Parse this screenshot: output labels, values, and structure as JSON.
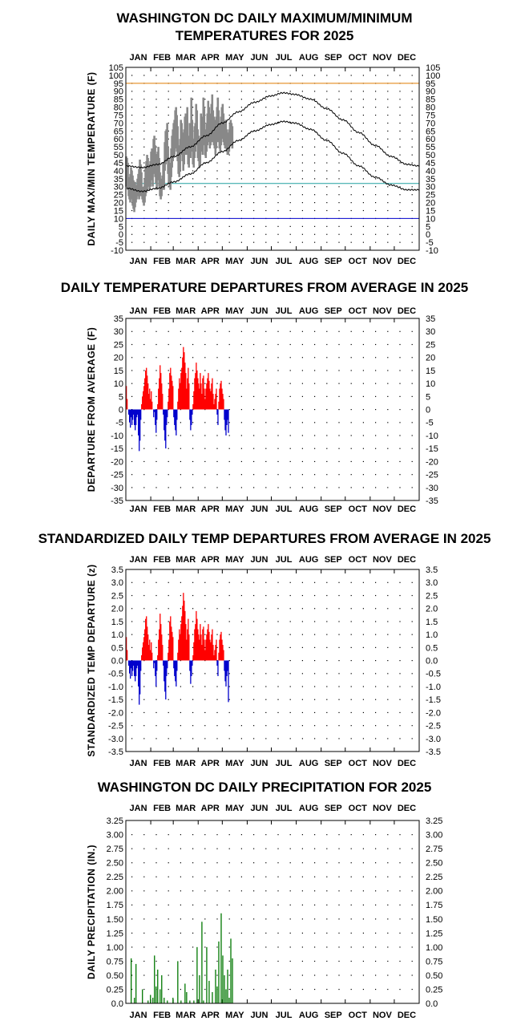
{
  "months": [
    "JAN",
    "FEB",
    "MAR",
    "APR",
    "MAY",
    "JUN",
    "JUL",
    "AUG",
    "SEP",
    "OCT",
    "NOV",
    "DEC"
  ],
  "chart_data": [
    {
      "id": "maxmin",
      "type": "line",
      "title": [
        "WASHINGTON DC DAILY MAXIMUM/MINIMUM",
        "TEMPERATURES FOR 2025"
      ],
      "ylabel": "DAILY MAX/MIN TEMPERATURE (F)",
      "ylim": [
        -10,
        105
      ],
      "yticks": [
        "-10",
        "-5",
        "0",
        "5",
        "10",
        "15",
        "20",
        "25",
        "30",
        "35",
        "40",
        "45",
        "50",
        "55",
        "60",
        "65",
        "70",
        "75",
        "80",
        "85",
        "90",
        "95",
        "100",
        "105"
      ],
      "reference_lines": [
        {
          "value": 95,
          "color": "#e07b00"
        },
        {
          "value": 32,
          "color": "#20a0a0"
        },
        {
          "value": 10,
          "color": "#0000cc"
        }
      ],
      "normal_high": {
        "day": [
          1,
          20,
          40,
          60,
          80,
          100,
          120,
          140,
          160,
          180,
          196,
          210,
          230,
          250,
          270,
          290,
          310,
          330,
          350,
          365
        ],
        "temp": [
          43,
          42,
          44,
          49,
          55,
          62,
          70,
          77,
          83,
          87,
          89,
          88,
          85,
          79,
          72,
          64,
          56,
          49,
          44,
          43
        ]
      },
      "normal_low": {
        "day": [
          1,
          20,
          40,
          60,
          80,
          100,
          120,
          140,
          160,
          180,
          196,
          210,
          230,
          250,
          270,
          290,
          310,
          330,
          350,
          365
        ],
        "temp": [
          29,
          27,
          29,
          33,
          38,
          45,
          52,
          59,
          65,
          69,
          71,
          70,
          66,
          59,
          51,
          43,
          36,
          31,
          28,
          28
        ]
      },
      "observed_high": [
        49,
        48,
        45,
        36,
        33,
        38,
        42,
        40,
        37,
        34,
        30,
        33,
        31,
        29,
        35,
        38,
        41,
        47,
        44,
        39,
        28,
        30,
        27,
        35,
        42,
        46,
        50,
        48,
        44,
        40,
        46,
        52,
        54,
        48,
        60,
        62,
        56,
        50,
        44,
        52,
        55,
        48,
        39,
        35,
        32,
        37,
        45,
        42,
        58,
        65,
        66,
        70,
        55,
        48,
        45,
        42,
        54,
        62,
        66,
        70,
        72,
        78,
        80,
        75,
        68,
        56,
        52,
        60,
        72,
        70,
        64,
        58,
        66,
        74,
        76,
        72,
        80,
        62,
        58,
        70,
        66,
        86,
        72,
        58,
        60,
        68,
        70,
        82,
        78,
        66,
        62,
        52,
        60,
        76,
        74,
        68,
        86,
        80,
        64,
        66,
        70,
        76,
        84,
        80,
        72,
        76,
        82,
        88,
        78,
        74,
        72,
        66,
        74,
        80,
        86,
        78,
        70,
        66,
        74,
        80,
        82,
        76,
        70,
        68,
        72,
        66,
        64,
        62,
        66,
        70,
        72,
        70,
        68
      ],
      "observed_low": [
        30,
        30,
        28,
        24,
        22,
        20,
        24,
        22,
        18,
        16,
        14,
        17,
        20,
        22,
        24,
        26,
        22,
        27,
        24,
        25,
        22,
        20,
        18,
        20,
        24,
        26,
        28,
        30,
        30,
        28,
        30,
        34,
        36,
        30,
        38,
        40,
        36,
        32,
        28,
        34,
        36,
        30,
        24,
        22,
        24,
        28,
        32,
        28,
        40,
        44,
        46,
        50,
        38,
        32,
        30,
        28,
        36,
        42,
        46,
        48,
        50,
        54,
        56,
        52,
        46,
        38,
        36,
        40,
        50,
        52,
        46,
        40,
        44,
        50,
        52,
        50,
        54,
        44,
        42,
        48,
        48,
        56,
        52,
        44,
        42,
        48,
        52,
        58,
        56,
        48,
        46,
        42,
        44,
        52,
        54,
        50,
        56,
        58,
        50,
        48,
        52,
        56,
        60,
        58,
        54,
        56,
        58,
        62,
        58,
        56,
        54,
        50,
        54,
        58,
        60,
        58,
        54,
        52,
        56,
        60,
        62,
        58,
        56,
        54,
        56,
        52,
        50,
        50,
        52,
        56,
        58,
        56,
        54
      ]
    },
    {
      "id": "departures",
      "type": "bar",
      "title": [
        "DAILY TEMPERATURE DEPARTURES FROM AVERAGE IN 2025"
      ],
      "ylabel": "DEPARTURE FROM AVERAGE (F)",
      "ylim": [
        -35,
        35
      ],
      "yticks": [
        "-35",
        "-30",
        "-25",
        "-20",
        "-15",
        "-10",
        "-5",
        "0",
        "5",
        "10",
        "15",
        "20",
        "25",
        "30",
        "35"
      ],
      "positive_color": "#ff0000",
      "negative_color": "#0000cc",
      "values": [
        9,
        4,
        0,
        -2,
        -5,
        -7,
        -3,
        -6,
        -4,
        -2,
        -6,
        -8,
        -6,
        -3,
        -2,
        -10,
        -16,
        -12,
        -4,
        2,
        5,
        7,
        9,
        12,
        15,
        16,
        13,
        10,
        6,
        8,
        4,
        7,
        3,
        0,
        -3,
        -1,
        -6,
        -9,
        -4,
        2,
        8,
        12,
        17,
        14,
        10,
        6,
        -2,
        -8,
        -12,
        -15,
        -6,
        -3,
        3,
        8,
        14,
        16,
        13,
        11,
        9,
        -3,
        -6,
        -8,
        -10,
        -4,
        3,
        8,
        12,
        10,
        14,
        16,
        20,
        24,
        22,
        18,
        14,
        8,
        12,
        16,
        10,
        -4,
        -8,
        -6,
        -2,
        2,
        7,
        12,
        14,
        18,
        15,
        12,
        10,
        8,
        14,
        10,
        6,
        12,
        13,
        8,
        4,
        8,
        10,
        12,
        14,
        11,
        8,
        7,
        10,
        12,
        6,
        2,
        4,
        6,
        8,
        -2,
        -6,
        3,
        8,
        10,
        11,
        8,
        6,
        4,
        -4,
        -8,
        -10,
        -6,
        -4,
        -9
      ],
      "values_note": "daily departures from Jan 1 onward"
    },
    {
      "id": "standardized",
      "type": "bar",
      "title": [
        "STANDARDIZED DAILY TEMP DEPARTURES FROM AVERAGE IN 2025"
      ],
      "ylabel": "STANDARDIZED TEMP DEPARTURE (z)",
      "ylim": [
        -3.5,
        3.5
      ],
      "yticks": [
        "-3.5",
        "-3.0",
        "-2.5",
        "-2.0",
        "-1.5",
        "-1.0",
        "-0.5",
        "0.0",
        "0.5",
        "1.0",
        "1.5",
        "2.0",
        "2.5",
        "3.0",
        "3.5"
      ],
      "positive_color": "#ff0000",
      "negative_color": "#0000cc",
      "values": [
        0.9,
        0.4,
        0.0,
        -0.2,
        -0.5,
        -0.7,
        -0.3,
        -0.6,
        -0.4,
        -0.2,
        -0.6,
        -0.8,
        -0.6,
        -0.3,
        -0.2,
        -1.0,
        -1.7,
        -1.3,
        -0.4,
        0.2,
        0.5,
        0.7,
        0.9,
        1.2,
        1.6,
        1.7,
        1.3,
        1.0,
        0.6,
        0.8,
        0.4,
        0.7,
        0.3,
        0.0,
        -0.3,
        -0.1,
        -0.6,
        -1.0,
        -0.4,
        0.2,
        0.8,
        1.2,
        1.8,
        1.4,
        1.0,
        0.6,
        -0.2,
        -0.8,
        -1.2,
        -1.5,
        -0.6,
        -0.3,
        0.3,
        0.8,
        1.5,
        1.7,
        1.3,
        1.1,
        0.9,
        -0.3,
        -0.6,
        -0.8,
        -1.0,
        -0.4,
        0.3,
        0.8,
        1.2,
        1.0,
        1.4,
        1.7,
        2.1,
        2.6,
        2.3,
        1.9,
        1.4,
        0.8,
        1.2,
        1.6,
        1.0,
        -0.4,
        -0.9,
        -0.6,
        -0.2,
        0.2,
        0.7,
        1.2,
        1.4,
        1.9,
        1.6,
        1.2,
        1.0,
        0.8,
        1.4,
        1.0,
        0.6,
        1.2,
        1.3,
        0.8,
        0.4,
        0.8,
        1.0,
        1.2,
        1.4,
        1.1,
        0.8,
        0.7,
        1.0,
        1.2,
        0.6,
        0.2,
        0.4,
        0.6,
        0.8,
        -0.2,
        -0.6,
        0.3,
        0.8,
        1.0,
        1.1,
        0.8,
        0.6,
        0.4,
        -0.4,
        -0.8,
        -1.0,
        -0.6,
        -0.4,
        -1.6
      ]
    },
    {
      "id": "precip",
      "type": "bar",
      "title": [
        "WASHINGTON DC DAILY PRECIPITATION FOR 2025"
      ],
      "ylabel": "DAILY PRECIPITATION (IN.)",
      "ylim": [
        0,
        3.25
      ],
      "yticks": [
        "0.0",
        "0.25",
        "0.50",
        "0.75",
        "1.00",
        "1.25",
        "1.50",
        "1.75",
        "2.00",
        "2.25",
        "2.50",
        "2.75",
        "3.00",
        "3.25"
      ],
      "bar_color": "#007700",
      "bars": [
        {
          "day": 6,
          "value": 0.8
        },
        {
          "day": 10,
          "value": 0.1
        },
        {
          "day": 12,
          "value": 0.7
        },
        {
          "day": 20,
          "value": 0.25
        },
        {
          "day": 27,
          "value": 0.05
        },
        {
          "day": 30,
          "value": 0.15
        },
        {
          "day": 33,
          "value": 0.1
        },
        {
          "day": 35,
          "value": 0.85
        },
        {
          "day": 37,
          "value": 0.3
        },
        {
          "day": 39,
          "value": 0.6
        },
        {
          "day": 42,
          "value": 0.25
        },
        {
          "day": 44,
          "value": 0.5
        },
        {
          "day": 47,
          "value": 0.1
        },
        {
          "day": 51,
          "value": 0.05
        },
        {
          "day": 58,
          "value": 0.1
        },
        {
          "day": 64,
          "value": 0.75
        },
        {
          "day": 68,
          "value": 0.05
        },
        {
          "day": 73,
          "value": 0.35
        },
        {
          "day": 75,
          "value": 0.2
        },
        {
          "day": 79,
          "value": 0.05
        },
        {
          "day": 84,
          "value": 0.05
        },
        {
          "day": 88,
          "value": 1.0
        },
        {
          "day": 91,
          "value": 0.5
        },
        {
          "day": 94,
          "value": 1.45
        },
        {
          "day": 96,
          "value": 0.05
        },
        {
          "day": 100,
          "value": 1.0
        },
        {
          "day": 103,
          "value": 0.4
        },
        {
          "day": 107,
          "value": 0.2
        },
        {
          "day": 111,
          "value": 0.6
        },
        {
          "day": 113,
          "value": 0.3
        },
        {
          "day": 115,
          "value": 1.1
        },
        {
          "day": 118,
          "value": 1.6
        },
        {
          "day": 120,
          "value": 0.85
        },
        {
          "day": 122,
          "value": 0.5
        },
        {
          "day": 124,
          "value": 0.25
        },
        {
          "day": 126,
          "value": 0.6
        },
        {
          "day": 128,
          "value": 0.1
        },
        {
          "day": 130,
          "value": 1.15
        },
        {
          "day": 132,
          "value": 0.8
        }
      ]
    }
  ]
}
